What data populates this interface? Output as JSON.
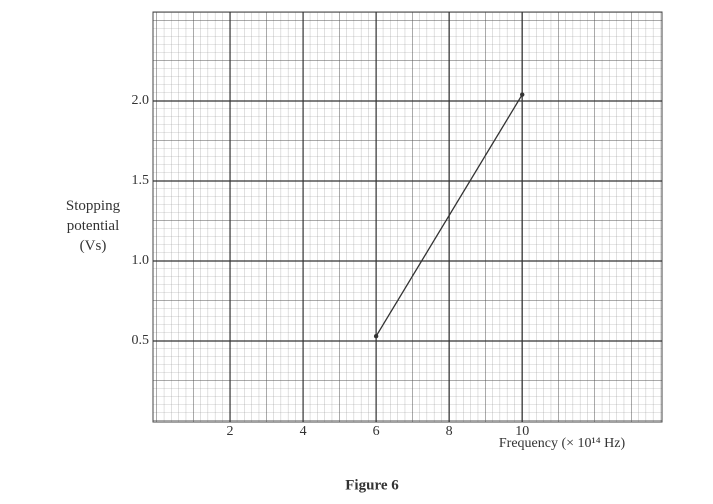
{
  "chart_data": {
    "type": "line",
    "ylabel": "Stopping potential (Vs)",
    "xlabel": "Frequency (× 10¹⁴ Hz)",
    "caption": "Figure 6",
    "x": [
      6,
      10
    ],
    "values": [
      0.53,
      2.04
    ],
    "color": "#333333",
    "xlim": [
      0,
      13.8
    ],
    "ylim": [
      0,
      2.55
    ],
    "xticks": [
      2,
      4,
      6,
      8,
      10
    ],
    "yticks": [
      0.5,
      {
        "value": 1,
        "label": "1.0"
      },
      1.5,
      {
        "value": 2,
        "label": "2.0"
      }
    ],
    "grid": true
  }
}
